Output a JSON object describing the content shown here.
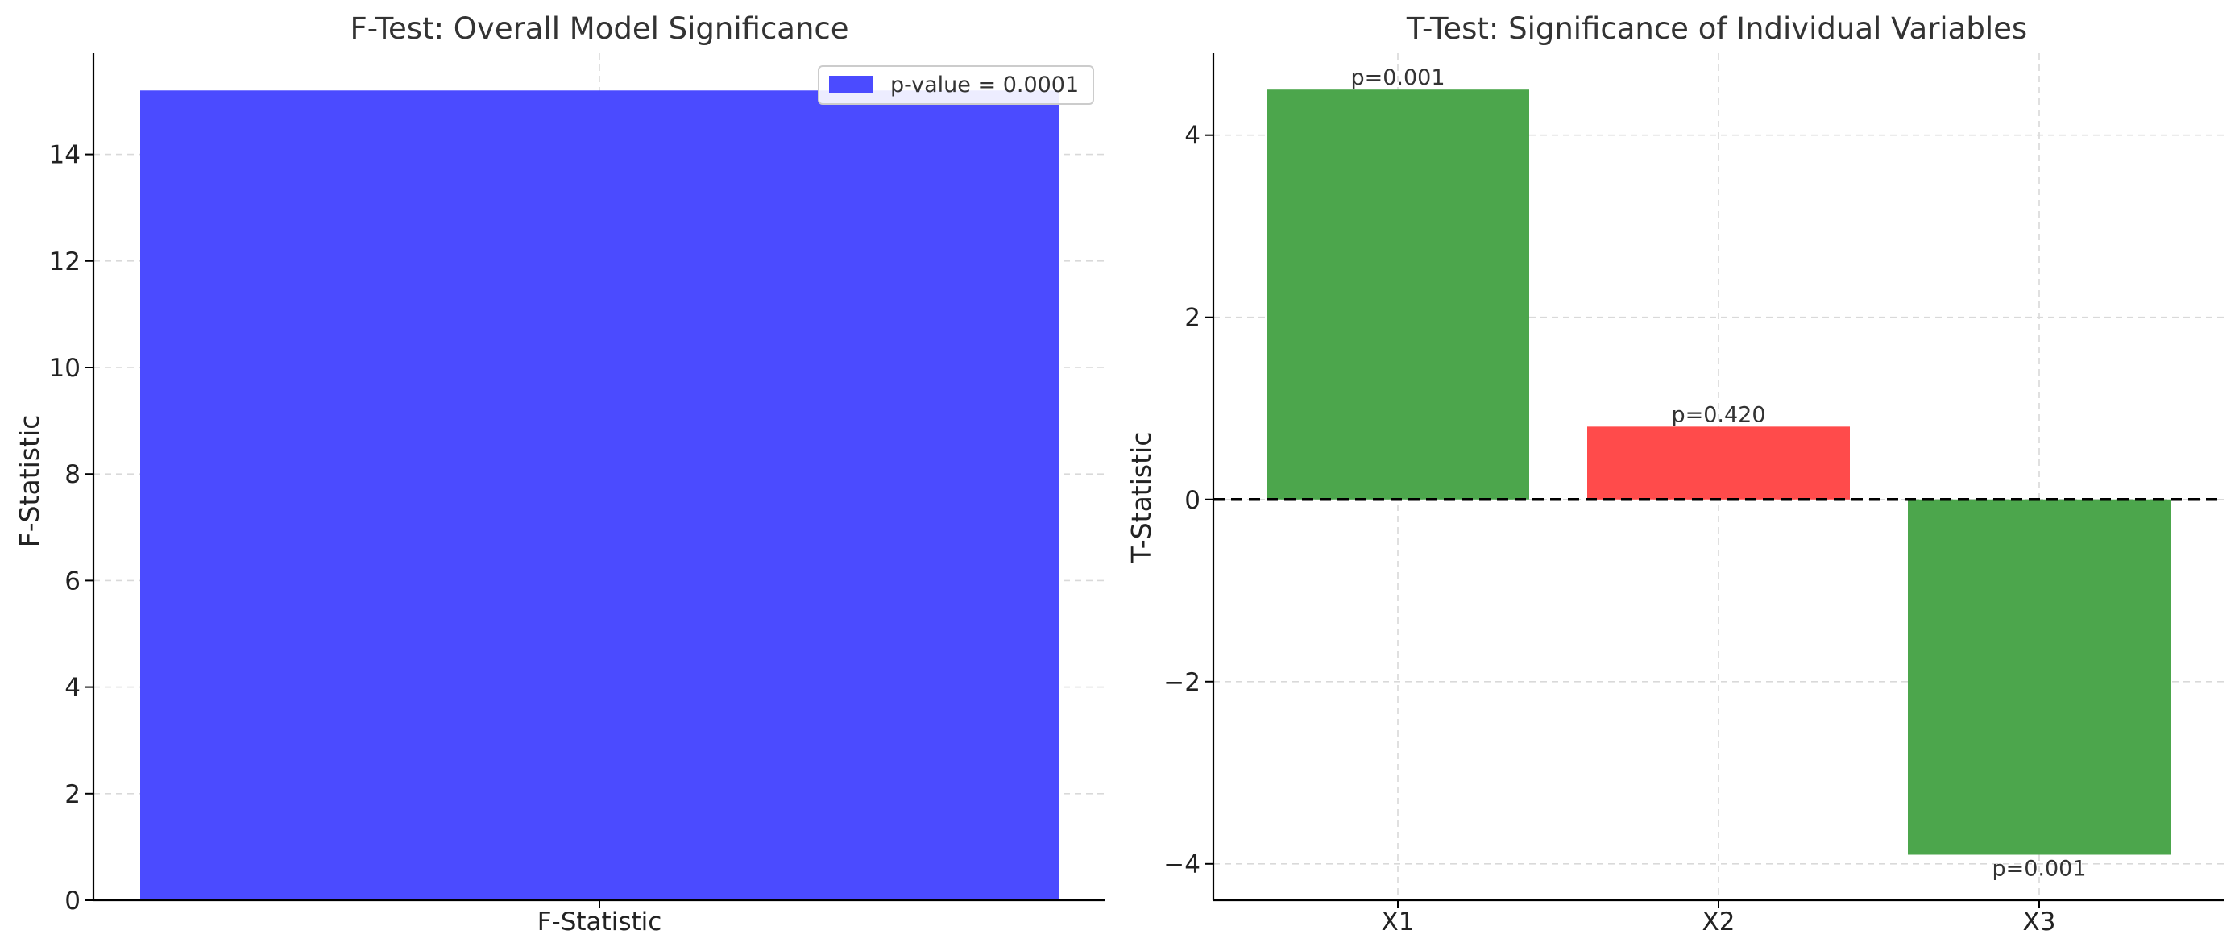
{
  "chart_data": [
    {
      "type": "bar",
      "title": "F-Test: Overall Model Significance",
      "xlabel": "",
      "ylabel": "F-Statistic",
      "categories": [
        "F-Statistic"
      ],
      "values": [
        15.2
      ],
      "ylim": [
        0,
        15.9
      ],
      "yticks": [
        0,
        2,
        4,
        6,
        8,
        10,
        12,
        14
      ],
      "colors": [
        "#4b4bff"
      ],
      "grid": true,
      "legend": {
        "position": "top-right",
        "entries": [
          {
            "label": "p-value = 0.0001",
            "color": "#4b4bff"
          }
        ]
      }
    },
    {
      "type": "bar",
      "title": "T-Test: Significance of Individual Variables",
      "xlabel": "",
      "ylabel": "T-Statistic",
      "categories": [
        "X1",
        "X2",
        "X3"
      ],
      "values": [
        4.5,
        0.8,
        -3.9
      ],
      "annotations": [
        "p=0.001",
        "p=0.420",
        "p=0.001"
      ],
      "colors": [
        "#4ca64c",
        "#ff4b4b",
        "#4ca64c"
      ],
      "ylim": [
        -4.4,
        4.9
      ],
      "yticks": [
        -4,
        -2,
        0,
        2,
        4
      ],
      "ytick_labels": [
        "−4",
        "−2",
        "0",
        "2",
        "4"
      ],
      "reference_line": {
        "y": 0,
        "style": "dashed",
        "color": "#000000"
      },
      "grid": true
    }
  ]
}
